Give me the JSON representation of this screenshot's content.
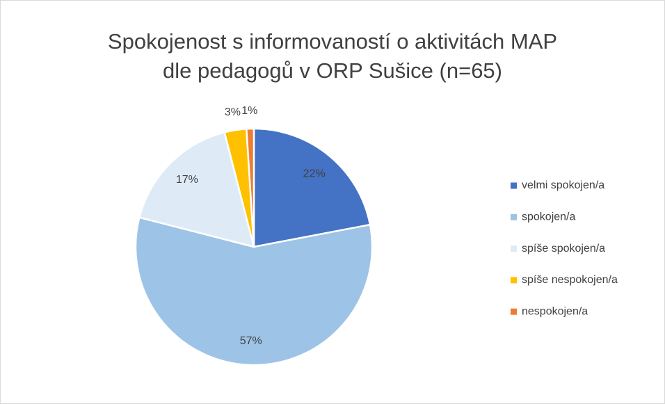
{
  "chart_data": {
    "type": "pie",
    "title": [
      "Spokojenost s informovaností o aktivitách MAP",
      "dle pedagogů v ORP Sušice (n=65)"
    ],
    "categories": [
      "velmi spokojen/a",
      "spokojen/a",
      "spíše spokojen/a",
      "spíše nespokojen/a",
      "nespokojen/a"
    ],
    "values": [
      22,
      57,
      17,
      3,
      1
    ],
    "value_labels": [
      "22%",
      "57%",
      "17%",
      "3%",
      "1%"
    ],
    "colors": [
      "#4472c4",
      "#9dc3e6",
      "#deebf7",
      "#ffc000",
      "#ed7d31"
    ],
    "legend": "right"
  }
}
